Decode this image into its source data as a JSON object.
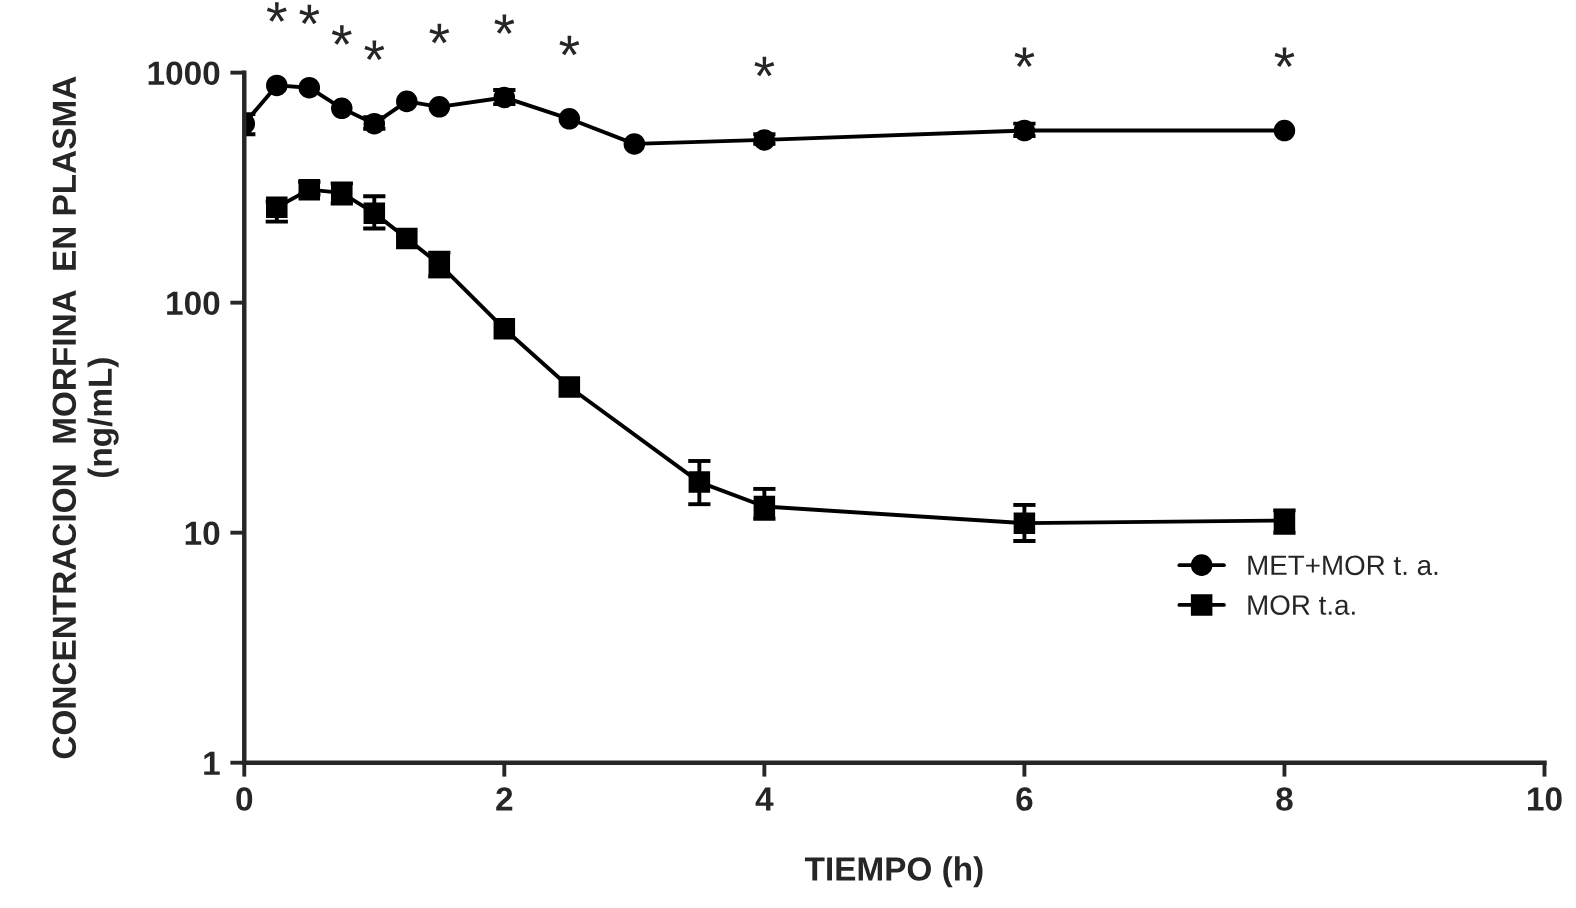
{
  "chart_data": {
    "type": "line",
    "xlabel": "TIEMPO (h)",
    "ylabel": "CONCENTRACION  MORFINA  EN PLASMA\n(ng/mL)",
    "log": "y",
    "xlim": [
      0,
      10
    ],
    "xticks": [
      0,
      2,
      4,
      6,
      8,
      10
    ],
    "ylim": [
      1,
      1000
    ],
    "yticks": [
      1,
      10,
      100,
      1000
    ],
    "grid": false,
    "legend": "right",
    "line_style": "solid",
    "series": [
      {
        "name": "MET+MOR t. a.",
        "color": "#000000",
        "marker": "circle",
        "x": [
          0,
          0.25,
          0.5,
          0.75,
          1,
          1.25,
          1.5,
          2,
          2.5,
          3,
          4,
          6,
          8
        ],
        "values": [
          600,
          880,
          860,
          700,
          600,
          750,
          710,
          780,
          630,
          490,
          510,
          560,
          560
        ],
        "errors": [
          [
            540,
            660
          ],
          null,
          null,
          null,
          [
            570,
            640
          ],
          null,
          null,
          [
            730,
            840
          ],
          null,
          null,
          [
            490,
            540
          ],
          [
            530,
            600
          ],
          null
        ]
      },
      {
        "name": "MOR t.a.",
        "color": "#000000",
        "marker": "square",
        "x": [
          0.25,
          0.5,
          0.75,
          1,
          1.25,
          1.5,
          2,
          2.5,
          3.5,
          4,
          6,
          8
        ],
        "values": [
          260,
          310,
          300,
          245,
          190,
          147,
          77,
          43,
          16.6,
          13,
          11,
          11.3
        ],
        "errors": [
          [
            225,
            275
          ],
          [
            295,
            335
          ],
          [
            270,
            330
          ],
          [
            210,
            290
          ],
          null,
          [
            130,
            165
          ],
          null,
          null,
          [
            13.3,
            20.5
          ],
          [
            11.5,
            15.5
          ],
          [
            9.2,
            13.2
          ],
          [
            10,
            12.5
          ]
        ]
      }
    ],
    "annotations": [
      {
        "text": "*",
        "x": 0.25,
        "y": 880
      },
      {
        "text": "*",
        "x": 0.5,
        "y": 860
      },
      {
        "text": "*",
        "x": 0.75,
        "y": 700
      },
      {
        "text": "*",
        "x": 1,
        "y": 600
      },
      {
        "text": "*",
        "x": 1.5,
        "y": 710
      },
      {
        "text": "*",
        "x": 2,
        "y": 780
      },
      {
        "text": "*",
        "x": 2.5,
        "y": 630
      },
      {
        "text": "*",
        "x": 4,
        "y": 510
      },
      {
        "text": "*",
        "x": 6,
        "y": 560
      },
      {
        "text": "*",
        "x": 8,
        "y": 560
      }
    ]
  }
}
